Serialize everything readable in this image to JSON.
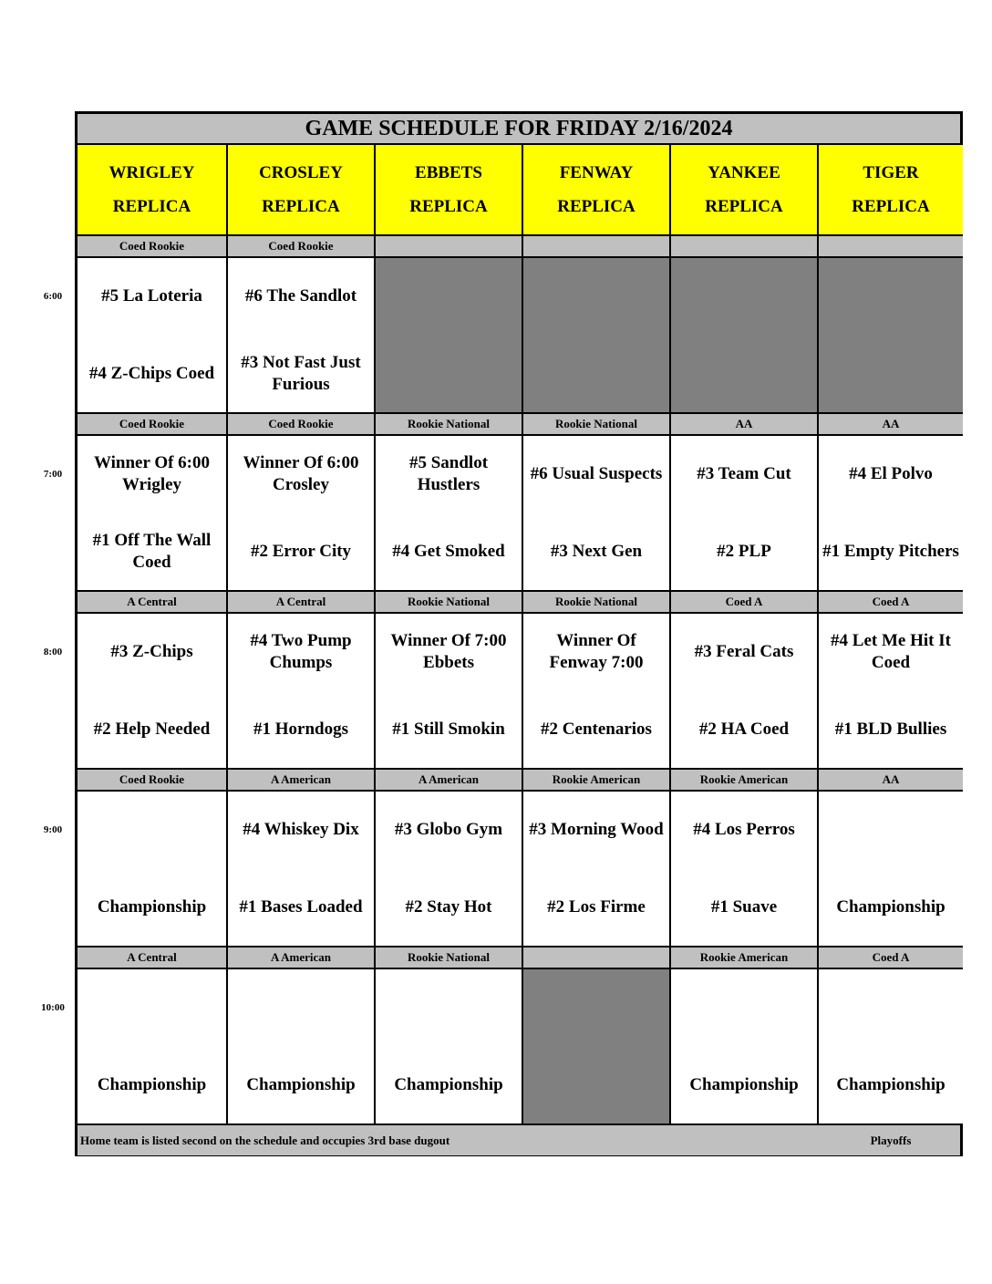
{
  "title": "GAME SCHEDULE FOR FRIDAY 2/16/2024",
  "fields": [
    {
      "name": "WRIGLEY",
      "sub": "REPLICA"
    },
    {
      "name": "CROSLEY",
      "sub": "REPLICA"
    },
    {
      "name": "EBBETS",
      "sub": "REPLICA"
    },
    {
      "name": "FENWAY",
      "sub": "REPLICA"
    },
    {
      "name": "YANKEE",
      "sub": "REPLICA"
    },
    {
      "name": "TIGER",
      "sub": "REPLICA"
    }
  ],
  "slots": [
    {
      "time": "6:00",
      "games": [
        {
          "league": "Coed Rookie",
          "away": "#5 La Loteria",
          "home": "#4 Z-Chips Coed"
        },
        {
          "league": "Coed Rookie",
          "away": "#6 The Sandlot",
          "home": "#3 Not Fast Just Furious"
        },
        {
          "league": "",
          "blocked": true
        },
        {
          "league": "",
          "blocked": true
        },
        {
          "league": "",
          "blocked": true
        },
        {
          "league": "",
          "blocked": true
        }
      ]
    },
    {
      "time": "7:00",
      "games": [
        {
          "league": "Coed Rookie",
          "away": "Winner Of 6:00 Wrigley",
          "home": "#1 Off The Wall Coed"
        },
        {
          "league": "Coed Rookie",
          "away": "Winner Of 6:00 Crosley",
          "home": "#2 Error City"
        },
        {
          "league": "Rookie National",
          "away": "#5 Sandlot Hustlers",
          "home": "#4 Get Smoked"
        },
        {
          "league": "Rookie National",
          "away": "#6 Usual Suspects",
          "home": "#3 Next Gen"
        },
        {
          "league": "AA",
          "away": "#3 Team Cut",
          "home": "#2 PLP"
        },
        {
          "league": "AA",
          "away": "#4 El Polvo",
          "home": "#1 Empty Pitchers"
        }
      ]
    },
    {
      "time": "8:00",
      "games": [
        {
          "league": "A Central",
          "away": "#3 Z-Chips",
          "home": "#2 Help Needed"
        },
        {
          "league": "A Central",
          "away": "#4 Two Pump Chumps",
          "home": "#1 Horndogs"
        },
        {
          "league": "Rookie National",
          "away": "Winner Of 7:00 Ebbets",
          "home": "#1 Still Smokin"
        },
        {
          "league": "Rookie National",
          "away": "Winner Of Fenway 7:00",
          "home": "#2 Centenarios"
        },
        {
          "league": "Coed A",
          "away": "#3 Feral Cats",
          "home": "#2 HA Coed"
        },
        {
          "league": "Coed A",
          "away": "#4 Let Me Hit It Coed",
          "home": "#1 BLD Bullies"
        }
      ]
    },
    {
      "time": "9:00",
      "games": [
        {
          "league": "Coed Rookie",
          "away": "",
          "home": "Championship"
        },
        {
          "league": "A American",
          "away": "#4 Whiskey Dix",
          "home": "#1 Bases Loaded"
        },
        {
          "league": "A American",
          "away": "#3 Globo Gym",
          "home": "#2 Stay Hot"
        },
        {
          "league": "Rookie American",
          "away": "#3 Morning Wood",
          "home": "#2 Los Firme"
        },
        {
          "league": "Rookie American",
          "away": "#4 Los Perros",
          "home": "#1 Suave"
        },
        {
          "league": "AA",
          "away": "",
          "home": "Championship"
        }
      ]
    },
    {
      "time": "10:00",
      "games": [
        {
          "league": "A Central",
          "away": "",
          "home": "Championship"
        },
        {
          "league": "A American",
          "away": "",
          "home": "Championship"
        },
        {
          "league": "Rookie National",
          "away": "",
          "home": "Championship"
        },
        {
          "league": "",
          "blocked": true
        },
        {
          "league": "Rookie American",
          "away": "",
          "home": "Championship"
        },
        {
          "league": "Coed A",
          "away": "",
          "home": "Championship"
        }
      ]
    }
  ],
  "footer": {
    "note": "Home team is listed second on the schedule and occupies 3rd base dugout",
    "legend": "Playoffs"
  },
  "colors": {
    "header": "#ffff00",
    "band": "#c0c0c0",
    "blocked": "#808080"
  }
}
